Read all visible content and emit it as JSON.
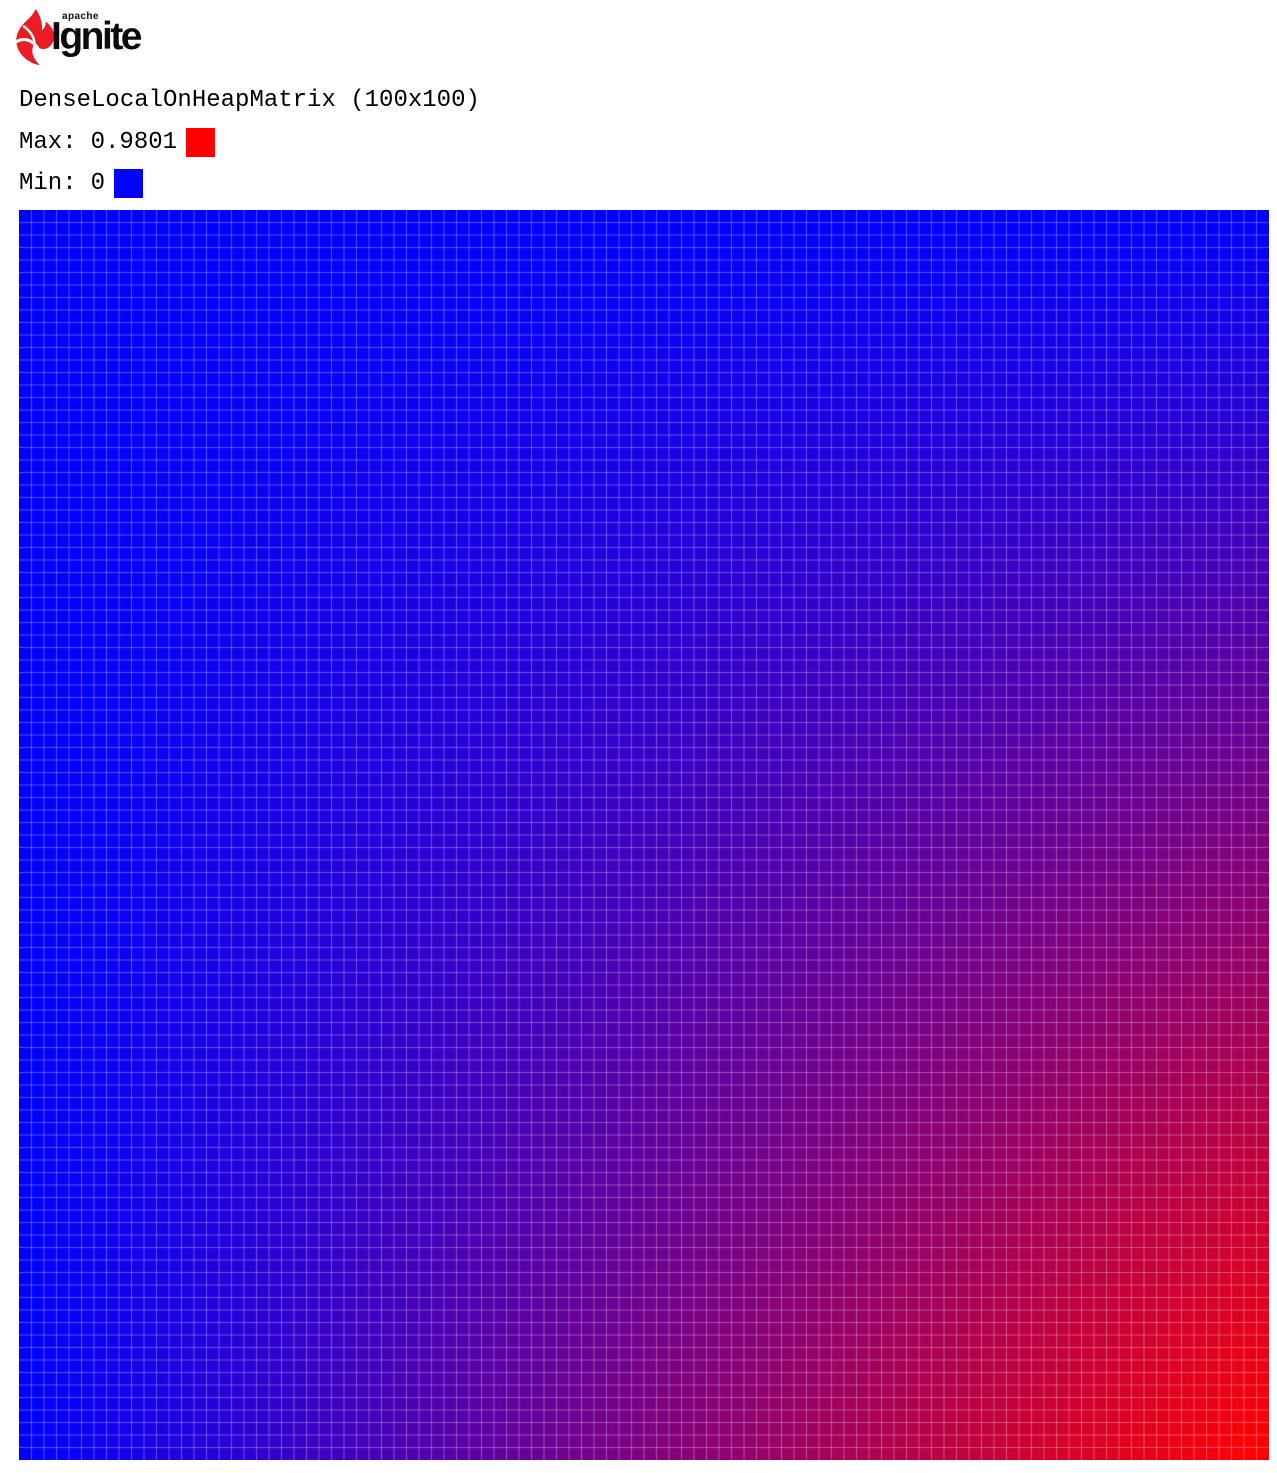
{
  "logo": {
    "brand_top": "apache",
    "brand_name": "Ignite",
    "flame_color": "#ec1c24",
    "text_color": "#0c0c0c"
  },
  "header": {
    "title": "DenseLocalOnHeapMatrix (100x100)"
  },
  "legend": {
    "max_label": "Max:",
    "max_value": "0.9801",
    "max_color": "#ff0000",
    "min_label": "Min:",
    "min_value": "0",
    "min_color": "#0000ff"
  },
  "chart_data": {
    "type": "heatmap",
    "title": "DenseLocalOnHeapMatrix (100x100)",
    "rows": 100,
    "cols": 100,
    "min": 0,
    "max": 0.9801,
    "value_rule": "value[row][col] = factors[row] * factors[col]",
    "factors": [
      0,
      0.01,
      0.02,
      0.03,
      0.04,
      0.05,
      0.06,
      0.07,
      0.08,
      0.09,
      0.1,
      0.11,
      0.12,
      0.13,
      0.14,
      0.15,
      0.16,
      0.17,
      0.18,
      0.19,
      0.2,
      0.21,
      0.22,
      0.23,
      0.24,
      0.25,
      0.26,
      0.27,
      0.28,
      0.29,
      0.3,
      0.31,
      0.32,
      0.33,
      0.34,
      0.35,
      0.36,
      0.37,
      0.38,
      0.39,
      0.4,
      0.41,
      0.42,
      0.43,
      0.44,
      0.45,
      0.46,
      0.47,
      0.48,
      0.49,
      0.5,
      0.51,
      0.52,
      0.53,
      0.54,
      0.55,
      0.56,
      0.57,
      0.58,
      0.59,
      0.6,
      0.61,
      0.62,
      0.63,
      0.64,
      0.65,
      0.66,
      0.67,
      0.68,
      0.69,
      0.7,
      0.71,
      0.72,
      0.73,
      0.74,
      0.75,
      0.76,
      0.77,
      0.78,
      0.79,
      0.8,
      0.81,
      0.82,
      0.83,
      0.84,
      0.85,
      0.86,
      0.87,
      0.88,
      0.89,
      0.9,
      0.91,
      0.92,
      0.93,
      0.94,
      0.95,
      0.96,
      0.97,
      0.98,
      0.99
    ],
    "color_scale": {
      "min_color": "#0000ff",
      "max_color": "#ff0000",
      "interpolation": "linear-rgb",
      "normalize_by": "max"
    },
    "grid": {
      "visible": true,
      "line_color": "rgba(255,255,255,0.32)"
    },
    "cell_size_px": 12.5,
    "legend_position": "top-left"
  }
}
